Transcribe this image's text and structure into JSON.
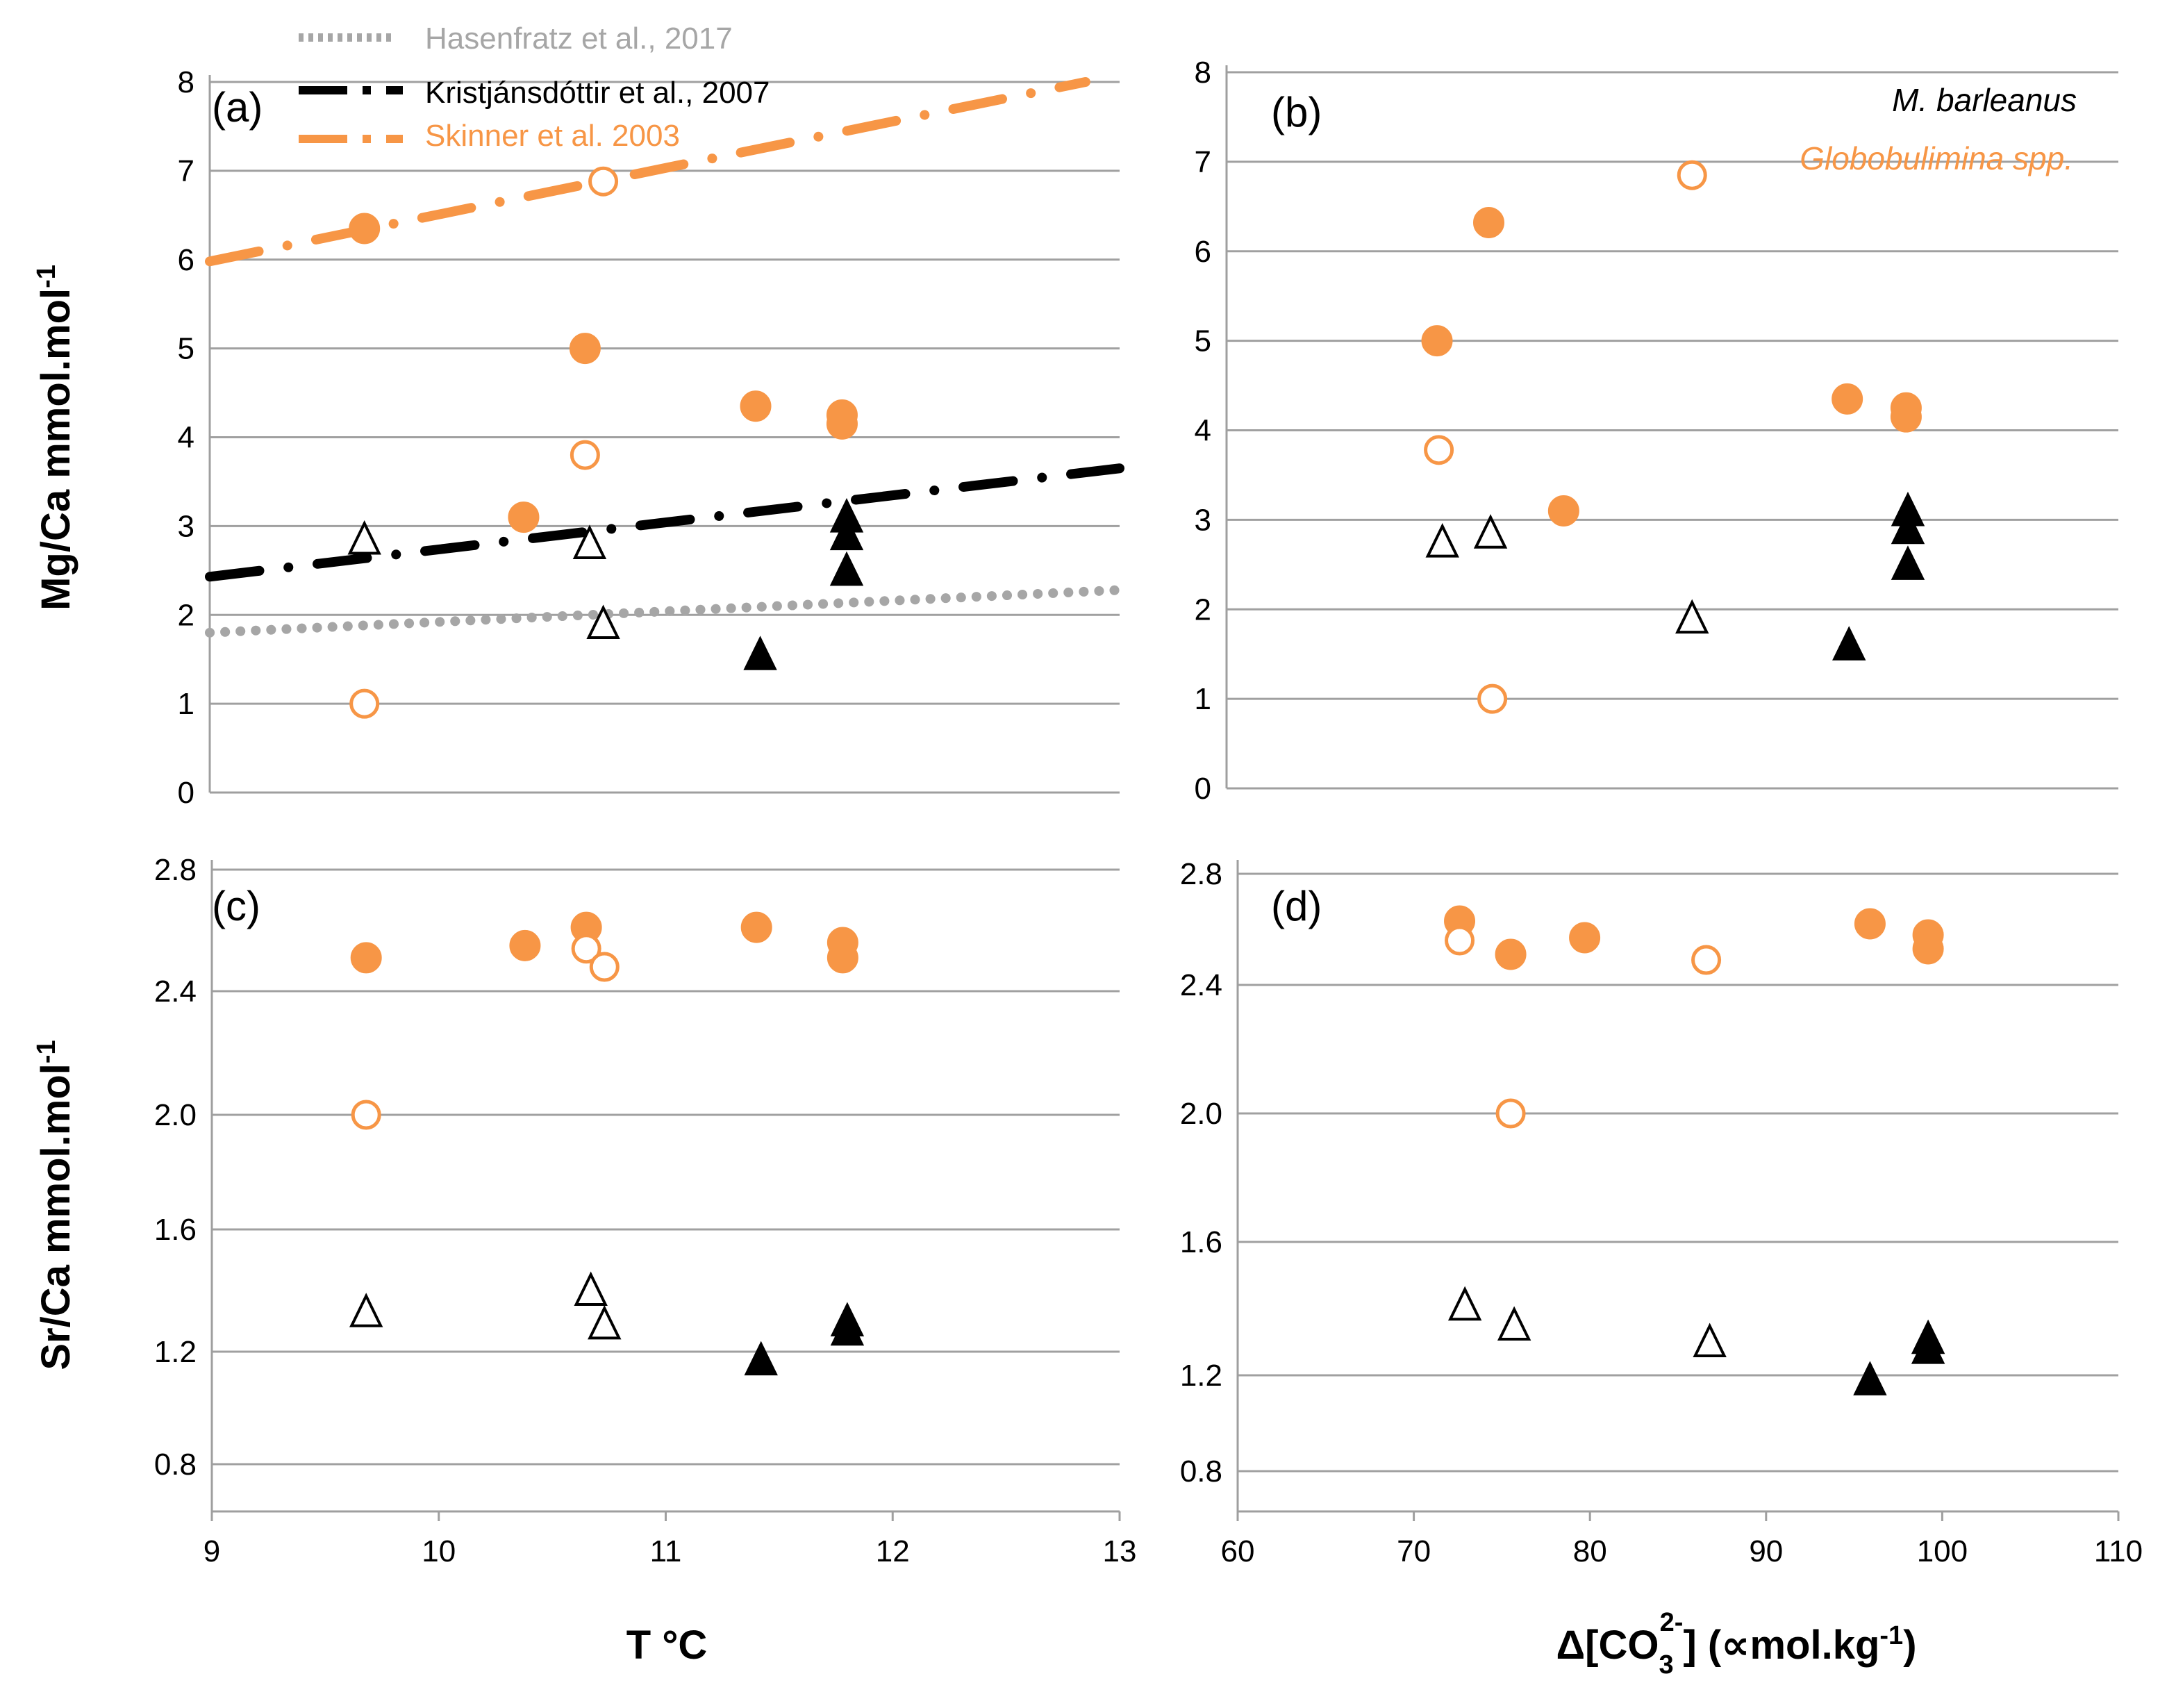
{
  "colors": {
    "orange": "#F79646",
    "black": "#000000",
    "gray": "#A6A6A6",
    "grid": "#A0A0A0",
    "axis": "#9F9F9F"
  },
  "legend": [
    {
      "label": "Hasenfratz et al., 2017",
      "color": "#A6A6A6",
      "style": "dotted"
    },
    {
      "label": "Kristjánsdóttir et al., 2007",
      "color": "#000000",
      "style": "dash-dot"
    },
    {
      "label": "Skinner et al. 2003",
      "color": "#F79646",
      "style": "dash-dot"
    }
  ],
  "species": [
    {
      "label": "M. barleanus",
      "color": "#000000"
    },
    {
      "label": "Globobulimina spp.",
      "color": "#F79646"
    }
  ],
  "axis_titles": {
    "mg_ca": "Mg/Ca mmol.mol",
    "mg_ca_sup": "-1",
    "sr_ca": "Sr/Ca mmol.mol",
    "sr_ca_sup": "-1",
    "temperature": "T °C",
    "delta_co3_prefix": "Δ[CO",
    "delta_co3_sub": "3",
    "delta_co3_sup": "2-",
    "delta_co3_suffix": "] (∝mol.kg",
    "delta_co3_unit_sup": "-1",
    "delta_co3_close": ")"
  },
  "chart_data": [
    {
      "panel": "(a)",
      "type": "scatter",
      "xlabel": "T °C",
      "ylabel": "Mg/Ca mmol.mol-1",
      "xlim": [
        9,
        13
      ],
      "ylim": [
        0,
        8
      ],
      "yticks": [
        0,
        1,
        2,
        3,
        4,
        5,
        6,
        7,
        8
      ],
      "xticks": [],
      "grid": "horizontal",
      "series": [
        {
          "name": "Globobulimina spp.",
          "marker": "circle-filled",
          "color": "#F79646",
          "x": [
            9.68,
            10.38,
            10.65,
            11.4,
            11.78,
            11.78
          ],
          "y": [
            6.35,
            3.1,
            5.0,
            4.35,
            4.25,
            4.15
          ]
        },
        {
          "name": "Globobulimina spp.",
          "marker": "circle-open",
          "color": "#F79646",
          "x": [
            9.68,
            10.65,
            10.73
          ],
          "y": [
            1.0,
            3.8,
            6.88
          ]
        },
        {
          "name": "M. barleanus",
          "marker": "triangle-open",
          "color": "#000000",
          "x": [
            9.68,
            10.67,
            10.73
          ],
          "y": [
            2.85,
            2.8,
            1.9
          ]
        },
        {
          "name": "M. barleanus",
          "marker": "triangle-filled",
          "color": "#000000",
          "x": [
            11.42,
            11.8,
            11.8,
            11.8
          ],
          "y": [
            1.55,
            3.1,
            2.9,
            2.5
          ]
        }
      ],
      "lines": [
        {
          "name": "Hasenfratz et al., 2017",
          "color": "#A6A6A6",
          "style": "dotted",
          "x": [
            9,
            13
          ],
          "y": [
            1.8,
            2.28
          ]
        },
        {
          "name": "Kristjánsdóttir et al., 2007",
          "color": "#000000",
          "style": "dash-dot",
          "x": [
            9,
            13
          ],
          "y": [
            2.43,
            3.65
          ]
        },
        {
          "name": "Skinner et al. 2003",
          "color": "#F79646",
          "style": "dash-dot",
          "x": [
            9,
            12.85
          ],
          "y": [
            5.98,
            8.0
          ]
        }
      ]
    },
    {
      "panel": "(b)",
      "type": "scatter",
      "xlabel": "Δ[CO32-] (∝mol.kg-1)",
      "ylabel": "",
      "xlim": [
        60,
        110
      ],
      "ylim": [
        0,
        8
      ],
      "yticks": [
        0,
        1,
        2,
        3,
        4,
        5,
        6,
        7,
        8
      ],
      "xticks": [],
      "grid": "horizontal",
      "series": [
        {
          "name": "Globobulimina spp.",
          "marker": "circle-filled",
          "color": "#F79646",
          "x": [
            71.8,
            74.7,
            78.9,
            94.8,
            98.1,
            98.1
          ],
          "y": [
            5.0,
            6.32,
            3.1,
            4.35,
            4.25,
            4.15
          ]
        },
        {
          "name": "Globobulimina spp.",
          "marker": "circle-open",
          "color": "#F79646",
          "x": [
            71.9,
            74.9,
            86.1
          ],
          "y": [
            3.78,
            1.0,
            6.85
          ]
        },
        {
          "name": "M. barleanus",
          "marker": "triangle-open",
          "color": "#000000",
          "x": [
            72.1,
            74.8,
            86.1
          ],
          "y": [
            2.75,
            2.85,
            1.9
          ]
        },
        {
          "name": "M. barleanus",
          "marker": "triangle-filled",
          "color": "#000000",
          "x": [
            94.9,
            98.2,
            98.2,
            98.2
          ],
          "y": [
            1.6,
            3.1,
            2.9,
            2.5
          ]
        }
      ]
    },
    {
      "panel": "(c)",
      "type": "scatter",
      "xlabel": "T °C",
      "ylabel": "Sr/Ca mmol.mol-1",
      "xlim": [
        9,
        13
      ],
      "ylim": [
        0.6,
        2.85
      ],
      "yticks": [
        "0.8",
        "1.2",
        "1.6",
        "2.0",
        "2.4",
        "2.8"
      ],
      "xticks": [
        9,
        10,
        11,
        12,
        13
      ],
      "grid": "horizontal-offset",
      "series": [
        {
          "name": "Globobulimina spp.",
          "marker": "circle-filled",
          "color": "#F79646",
          "x": [
            9.68,
            10.38,
            10.65,
            11.4,
            11.78,
            11.78
          ],
          "y": [
            2.51,
            2.55,
            2.61,
            2.61,
            2.56,
            2.51
          ]
        },
        {
          "name": "Globobulimina spp.",
          "marker": "circle-open",
          "color": "#F79646",
          "x": [
            9.68,
            10.65,
            10.73
          ],
          "y": [
            2.0,
            2.54,
            2.48
          ]
        },
        {
          "name": "M. barleanus",
          "marker": "triangle-open",
          "color": "#000000",
          "x": [
            9.68,
            10.67,
            10.73
          ],
          "y": [
            1.33,
            1.4,
            1.29
          ]
        },
        {
          "name": "M. barleanus",
          "marker": "triangle-filled",
          "color": "#000000",
          "x": [
            11.42,
            11.8,
            11.8
          ],
          "y": [
            1.17,
            1.3,
            1.27
          ]
        }
      ]
    },
    {
      "panel": "(d)",
      "type": "scatter",
      "xlabel": "Δ[CO32-] (∝mol.kg-1)",
      "ylabel": "",
      "xlim": [
        60,
        110
      ],
      "ylim": [
        0.6,
        2.85
      ],
      "yticks": [
        "0.8",
        "1.2",
        "1.6",
        "2.0",
        "2.4",
        "2.8"
      ],
      "xticks": [
        60,
        70,
        80,
        90,
        100,
        110
      ],
      "grid": "horizontal-offset",
      "series": [
        {
          "name": "Globobulimina spp.",
          "marker": "circle-filled",
          "color": "#F79646",
          "x": [
            72.6,
            75.5,
            79.7,
            95.9,
            99.2,
            99.2
          ],
          "y": [
            2.63,
            2.51,
            2.57,
            2.62,
            2.58,
            2.53
          ]
        },
        {
          "name": "Globobulimina spp.",
          "marker": "circle-open",
          "color": "#F79646",
          "x": [
            72.6,
            75.5,
            86.6
          ],
          "y": [
            2.56,
            2.0,
            2.49
          ]
        },
        {
          "name": "M. barleanus",
          "marker": "triangle-open",
          "color": "#000000",
          "x": [
            72.9,
            75.7,
            86.8
          ],
          "y": [
            1.41,
            1.35,
            1.3
          ]
        },
        {
          "name": "M. barleanus",
          "marker": "triangle-filled",
          "color": "#000000",
          "x": [
            95.9,
            99.2,
            99.2
          ],
          "y": [
            1.18,
            1.31,
            1.28
          ]
        }
      ]
    }
  ]
}
